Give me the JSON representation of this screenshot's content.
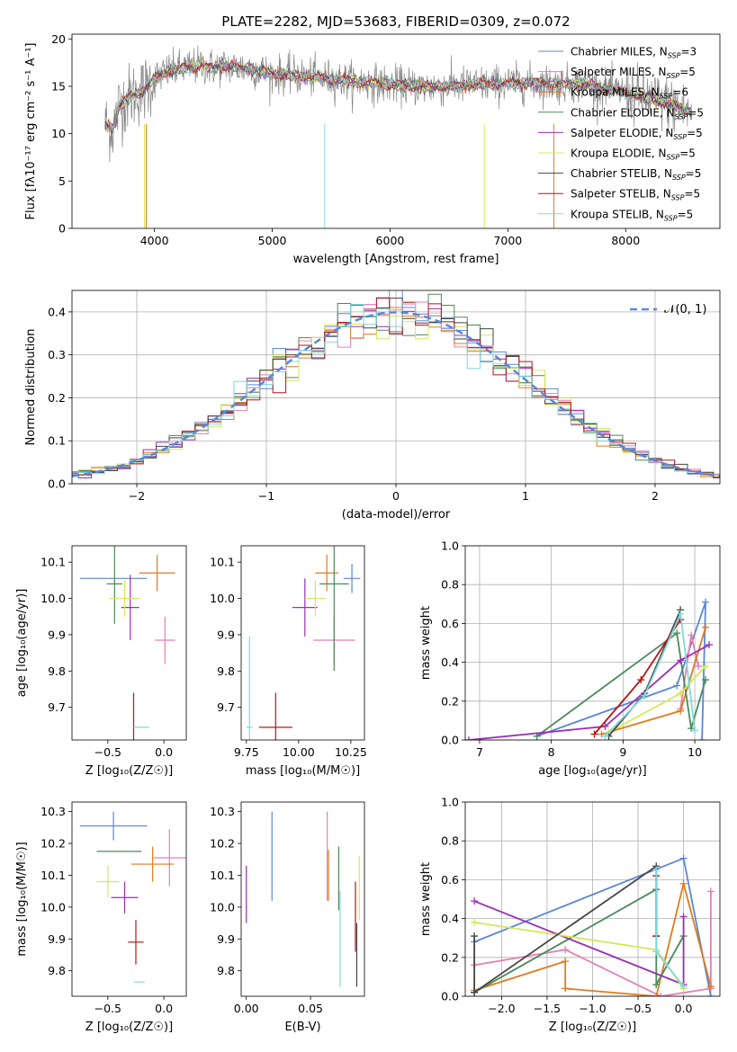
{
  "figure": {
    "title": "PLATE=2282, MJD=53683, FIBERID=0309, z=0.072"
  },
  "colors": {
    "Chabrier MILES": "#5b86d8",
    "Salpeter MILES": "#e57fb6",
    "Kroupa MILES": "#e07b1c",
    "Chabrier ELODIE": "#4a8a5a",
    "Salpeter ELODIE": "#9b2db5",
    "Kroupa ELODIE": "#d4e85a",
    "Chabrier STELIB": "#444444",
    "Salpeter STELIB": "#b81414",
    "Kroupa STELIB": "#7fd8dc"
  },
  "chart_data": [
    {
      "id": "spectrum",
      "type": "line",
      "xlabel": "wavelength [Angstrom, rest frame]",
      "ylabel": "Flux [fλ10⁻¹⁷ erg cm⁻² s⁻¹ A⁻¹]",
      "xlim": [
        3300,
        8800
      ],
      "ylim": [
        0,
        20.5
      ],
      "xticks": [
        4000,
        5000,
        6000,
        7000,
        8000
      ],
      "yticks": [
        0,
        5,
        10,
        15,
        20
      ],
      "grid": false,
      "legend_position": "upper-right",
      "legend": [
        {
          "name": "Chabrier MILES",
          "nssp": "3"
        },
        {
          "name": "Salpeter MILES",
          "nssp": "5"
        },
        {
          "name": "Kroupa MILES",
          "nssp": "6"
        },
        {
          "name": "Chabrier ELODIE",
          "nssp": "5"
        },
        {
          "name": "Salpeter ELODIE",
          "nssp": "5"
        },
        {
          "name": "Kroupa ELODIE",
          "nssp": "5"
        },
        {
          "name": "Chabrier STELIB",
          "nssp": "5"
        },
        {
          "name": "Salpeter STELIB",
          "nssp": "5"
        },
        {
          "name": "Kroupa STELIB",
          "nssp": "5"
        }
      ],
      "data_series_x": [
        3580,
        3650,
        3700,
        3800,
        3900,
        4000,
        4100,
        4200,
        4300,
        4400,
        4500,
        4600,
        4700,
        4800,
        4900,
        5000,
        5200,
        5400,
        5600,
        5800,
        6000,
        6200,
        6400,
        6600,
        6800,
        7000,
        7200,
        7400,
        7600,
        7800,
        8000,
        8200,
        8400,
        8550
      ],
      "data_series_y": [
        11.0,
        10.5,
        13.0,
        14.0,
        14.5,
        15.8,
        16.5,
        16.8,
        17.0,
        17.2,
        17.0,
        17.1,
        17.0,
        16.9,
        16.6,
        16.3,
        16.1,
        15.9,
        15.6,
        15.4,
        15.2,
        15.0,
        14.9,
        15.1,
        15.2,
        15.3,
        15.4,
        15.2,
        15.3,
        14.8,
        14.3,
        13.7,
        13.0,
        12.3
      ]
    },
    {
      "id": "residuals",
      "type": "line",
      "xlabel": "(data-model)/error",
      "ylabel": "Normed distribution",
      "xlim": [
        -2.5,
        2.5
      ],
      "ylim": [
        0,
        0.45
      ],
      "xticks": [
        -2,
        -1,
        0,
        1,
        2
      ],
      "yticks": [
        0.0,
        0.1,
        0.2,
        0.3,
        0.4
      ],
      "grid": true,
      "legend_position": "upper-right",
      "legend_label": "𝒩(0, 1)",
      "bin_width": 0.1
    },
    {
      "id": "age_vs_Z",
      "type": "scatter",
      "xlabel": "Z [log₁₀(Z/Z☉)]",
      "ylabel": "age  [log₁₀(age/yr)]",
      "xlim": [
        -0.82,
        0.2
      ],
      "ylim": [
        9.61,
        10.145
      ],
      "xticks": [
        -0.5,
        0.0
      ],
      "yticks": [
        9.7,
        9.8,
        9.9,
        10.0,
        10.1
      ],
      "grid": false,
      "points": [
        {
          "model": "Chabrier MILES",
          "x": -0.45,
          "xerr": 0.3,
          "y": 10.055,
          "yerr": 0.0
        },
        {
          "model": "Salpeter MILES",
          "x": 0.01,
          "xerr": 0.09,
          "y": 9.885,
          "yerr": 0.065
        },
        {
          "model": "Kroupa MILES",
          "x": -0.06,
          "xerr": 0.16,
          "y": 10.07,
          "yerr": 0.05
        },
        {
          "model": "Chabrier ELODIE",
          "x": -0.44,
          "xerr": 0.07,
          "y": 10.04,
          "yerr": 0.11
        },
        {
          "model": "Salpeter ELODIE",
          "x": -0.3,
          "xerr": 0.08,
          "y": 9.975,
          "yerr": 0.09
        },
        {
          "model": "Kroupa ELODIE",
          "x": -0.35,
          "xerr": 0.14,
          "y": 10.0,
          "yerr": 0.05
        },
        {
          "model": "Chabrier STELIB",
          "x": -0.28,
          "xerr": 0.0,
          "y": 9.65,
          "yerr": 0.0
        },
        {
          "model": "Salpeter STELIB",
          "x": -0.27,
          "xerr": 0.0,
          "y": 9.645,
          "yerr": 0.095
        },
        {
          "model": "Kroupa STELIB",
          "x": -0.2,
          "xerr": 0.07,
          "y": 9.645,
          "yerr": 0.0
        }
      ]
    },
    {
      "id": "age_vs_mass",
      "type": "scatter",
      "xlabel": "mass [log₁₀(M/M☉)]",
      "ylabel": "",
      "xlim": [
        9.725,
        10.315
      ],
      "ylim": [
        9.61,
        10.145
      ],
      "xticks": [
        9.75,
        10.0,
        10.25
      ],
      "yticks": [
        9.7,
        9.8,
        9.9,
        10.0,
        10.1
      ],
      "grid": false,
      "points": [
        {
          "model": "Chabrier MILES",
          "x": 10.255,
          "xerr": 0.04,
          "y": 10.055,
          "yerr": 0.04
        },
        {
          "model": "Salpeter MILES",
          "x": 10.17,
          "xerr": 0.1,
          "y": 9.885,
          "yerr": 0.065
        },
        {
          "model": "Kroupa MILES",
          "x": 10.135,
          "xerr": 0.055,
          "y": 10.07,
          "yerr": 0.05
        },
        {
          "model": "Chabrier ELODIE",
          "x": 10.17,
          "xerr": 0.07,
          "y": 10.04,
          "yerr": 0.24
        },
        {
          "model": "Salpeter ELODIE",
          "x": 10.03,
          "xerr": 0.06,
          "y": 9.975,
          "yerr": 0.08
        },
        {
          "model": "Kroupa ELODIE",
          "x": 10.08,
          "xerr": 0.05,
          "y": 10.0,
          "yerr": 0.05
        },
        {
          "model": "Chabrier STELIB",
          "x": 9.75,
          "xerr": 0.0,
          "y": 9.65,
          "yerr": 0.0
        },
        {
          "model": "Salpeter STELIB",
          "x": 9.89,
          "xerr": 0.08,
          "y": 9.645,
          "yerr": 0.095
        },
        {
          "model": "Kroupa STELIB",
          "x": 9.765,
          "xerr": 0.015,
          "y": 9.645,
          "yerr": 0.25
        }
      ]
    },
    {
      "id": "weight_vs_age",
      "type": "line",
      "xlabel": "age  [log₁₀(age/yr)]",
      "ylabel": "mass weight",
      "xlim": [
        6.8,
        10.35
      ],
      "ylim": [
        0,
        1.0
      ],
      "xticks": [
        7,
        8,
        9,
        10
      ],
      "yticks": [
        0.0,
        0.2,
        0.4,
        0.6,
        0.8,
        1.0
      ],
      "grid": true,
      "series": [
        {
          "model": "Chabrier MILES",
          "x": [
            7.8,
            9.75,
            10.15,
            10.1
          ],
          "y": [
            0.02,
            0.28,
            0.71,
            0.0
          ]
        },
        {
          "model": "Salpeter MILES",
          "x": [
            9.8,
            9.95,
            10.05
          ],
          "y": [
            0.16,
            0.54,
            0.38
          ]
        },
        {
          "model": "Kroupa MILES",
          "x": [
            8.7,
            9.8,
            10.15
          ],
          "y": [
            0.03,
            0.15,
            0.58
          ]
        },
        {
          "model": "Chabrier ELODIE",
          "x": [
            7.8,
            9.75,
            9.95,
            10.15
          ],
          "y": [
            0.02,
            0.55,
            0.06,
            0.31
          ]
        },
        {
          "model": "Salpeter ELODIE",
          "x": [
            6.85,
            8.75,
            9.8,
            10.2
          ],
          "y": [
            0.0,
            0.07,
            0.41,
            0.49
          ]
        },
        {
          "model": "Kroupa ELODIE",
          "x": [
            8.8,
            9.8,
            10.15
          ],
          "y": [
            0.04,
            0.24,
            0.38
          ]
        },
        {
          "model": "Chabrier STELIB",
          "x": [
            8.8,
            9.3,
            9.8
          ],
          "y": [
            0.02,
            0.24,
            0.67
          ]
        },
        {
          "model": "Salpeter STELIB",
          "x": [
            8.6,
            9.25,
            9.8
          ],
          "y": [
            0.03,
            0.31,
            0.62
          ]
        },
        {
          "model": "Kroupa STELIB",
          "x": [
            8.75,
            9.3,
            9.8,
            10.0
          ],
          "y": [
            0.02,
            0.23,
            0.65,
            0.05
          ]
        }
      ]
    },
    {
      "id": "mass_vs_Z",
      "type": "scatter",
      "xlabel": "Z [log₁₀(Z/Z☉)]",
      "ylabel": "mass [log₁₀(M/M☉)]",
      "xlim": [
        -0.82,
        0.2
      ],
      "ylim": [
        9.72,
        10.33
      ],
      "xticks": [
        -0.5,
        0.0
      ],
      "yticks": [
        9.8,
        9.9,
        10.0,
        10.1,
        10.2,
        10.3
      ],
      "grid": false,
      "points": [
        {
          "model": "Chabrier MILES",
          "x": -0.45,
          "xerr": 0.3,
          "y": 10.255,
          "yerr": 0.045
        },
        {
          "model": "Salpeter MILES",
          "x": 0.05,
          "xerr": 0.15,
          "y": 10.155,
          "yerr": 0.09
        },
        {
          "model": "Kroupa MILES",
          "x": -0.1,
          "xerr": 0.19,
          "y": 10.135,
          "yerr": 0.055
        },
        {
          "model": "Chabrier ELODIE",
          "x": -0.4,
          "xerr": 0.2,
          "y": 10.175,
          "yerr": 0.0
        },
        {
          "model": "Salpeter ELODIE",
          "x": -0.35,
          "xerr": 0.12,
          "y": 10.03,
          "yerr": 0.05
        },
        {
          "model": "Kroupa ELODIE",
          "x": -0.5,
          "xerr": 0.1,
          "y": 10.08,
          "yerr": 0.05
        },
        {
          "model": "Chabrier STELIB",
          "x": -0.28,
          "xerr": 0.0,
          "y": 9.75,
          "yerr": 0.0
        },
        {
          "model": "Salpeter STELIB",
          "x": -0.25,
          "xerr": 0.07,
          "y": 9.89,
          "yerr": 0.07
        },
        {
          "model": "Kroupa STELIB",
          "x": -0.22,
          "xerr": 0.05,
          "y": 9.765,
          "yerr": 0.0
        }
      ]
    },
    {
      "id": "mass_vs_ebv",
      "type": "scatter",
      "xlabel": "E(B-V)",
      "ylabel": "",
      "xlim": [
        -0.004,
        0.092
      ],
      "ylim": [
        9.72,
        10.33
      ],
      "xticks": [
        0.0,
        0.05
      ],
      "yticks": [
        9.8,
        9.9,
        10.0,
        10.1,
        10.2,
        10.3
      ],
      "grid": false,
      "points": [
        {
          "model": "Salpeter ELODIE",
          "x": 0.0,
          "y": 10.04,
          "yerr": 0.09
        },
        {
          "model": "Chabrier MILES",
          "x": 0.02,
          "y": 10.16,
          "yerr": 0.14
        },
        {
          "model": "Salpeter MILES",
          "x": 0.063,
          "y": 10.16,
          "yerr": 0.14
        },
        {
          "model": "Kroupa MILES",
          "x": 0.064,
          "y": 10.1,
          "yerr": 0.08
        },
        {
          "model": "Chabrier ELODIE",
          "x": 0.072,
          "y": 10.09,
          "yerr": 0.1
        },
        {
          "model": "Kroupa STELIB",
          "x": 0.073,
          "y": 9.9,
          "yerr": 0.15
        },
        {
          "model": "Salpeter STELIB",
          "x": 0.085,
          "y": 9.97,
          "yerr": 0.11
        },
        {
          "model": "Chabrier STELIB",
          "x": 0.086,
          "y": 9.85,
          "yerr": 0.1
        },
        {
          "model": "Kroupa ELODIE",
          "x": 0.088,
          "y": 10.06,
          "yerr": 0.1
        }
      ]
    },
    {
      "id": "weight_vs_Z",
      "type": "line",
      "xlabel": "Z [log₁₀(Z/Z☉)]",
      "ylabel": "mass weight",
      "xlim": [
        -2.4,
        0.4
      ],
      "ylim": [
        0,
        1.0
      ],
      "xticks": [
        -2.0,
        -1.5,
        -1.0,
        -0.5,
        0.0
      ],
      "yticks": [
        0.0,
        0.2,
        0.4,
        0.6,
        0.8,
        1.0
      ],
      "grid": true,
      "series": [
        {
          "model": "Chabrier MILES",
          "x": [
            -2.3,
            0.0,
            0.3
          ],
          "y": [
            0.28,
            0.71,
            0.0
          ]
        },
        {
          "model": "Salpeter MILES",
          "x": [
            -2.3,
            -1.3,
            -0.25,
            0.3,
            0.3
          ],
          "y": [
            0.16,
            0.24,
            0.0,
            0.04,
            0.54
          ]
        },
        {
          "model": "Kroupa MILES",
          "x": [
            -2.3,
            -1.3,
            -1.3,
            -0.3,
            0.0,
            0.3
          ],
          "y": [
            0.03,
            0.18,
            0.04,
            0.0,
            0.58,
            0.05
          ]
        },
        {
          "model": "Chabrier ELODIE",
          "x": [
            -2.3,
            -0.3,
            -0.3,
            0.0
          ],
          "y": [
            0.02,
            0.55,
            0.06,
            0.31
          ]
        },
        {
          "model": "Salpeter ELODIE",
          "x": [
            -2.3,
            0.0,
            0.0
          ],
          "y": [
            0.49,
            0.06,
            0.41
          ]
        },
        {
          "model": "Kroupa ELODIE",
          "x": [
            -2.3,
            -0.3,
            0.0
          ],
          "y": [
            0.38,
            0.24,
            0.04
          ]
        },
        {
          "model": "Chabrier STELIB",
          "x": [
            -2.3,
            -2.3,
            -0.3,
            -0.3
          ],
          "y": [
            0.31,
            0.02,
            0.67,
            0.31
          ]
        },
        {
          "model": "Salpeter STELIB",
          "x": [
            -0.3,
            -0.3
          ],
          "y": [
            0.62,
            0.31
          ]
        },
        {
          "model": "Kroupa STELIB",
          "x": [
            -0.3,
            -0.3,
            0.0
          ],
          "y": [
            0.65,
            0.23,
            0.05
          ]
        }
      ]
    }
  ]
}
